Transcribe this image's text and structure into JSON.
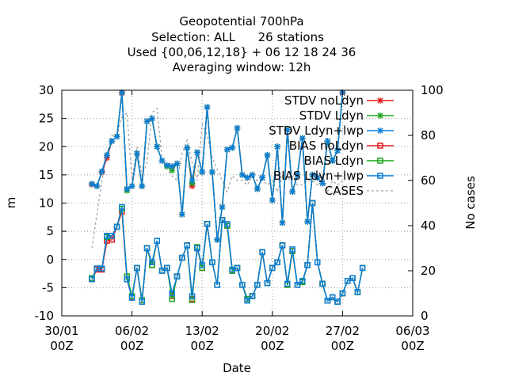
{
  "chart_data": {
    "type": "line",
    "title_lines": [
      "Geopotential 700hPa",
      "Selection: ALL      26 stations",
      "Used {00,06,12,18} + 06 12 18 24 36",
      "Averaging window: 12h"
    ],
    "xlabel": "Date",
    "ylabel": "m",
    "y2label": "No cases",
    "x_ticks": [
      {
        "label1": "30/01",
        "label2": "00Z",
        "day": 0
      },
      {
        "label1": "06/02",
        "label2": "00Z",
        "day": 7
      },
      {
        "label1": "13/02",
        "label2": "00Z",
        "day": 14
      },
      {
        "label1": "20/02",
        "label2": "00Z",
        "day": 21
      },
      {
        "label1": "27/02",
        "label2": "00Z",
        "day": 28
      },
      {
        "label1": "06/03",
        "label2": "00Z",
        "day": 35
      }
    ],
    "xlim": [
      0,
      35
    ],
    "ylim": [
      -10,
      30
    ],
    "y_ticks": [
      "-10",
      "-5",
      "0",
      "5",
      "10",
      "15",
      "20",
      "25",
      "30"
    ],
    "y2lim": [
      0,
      100
    ],
    "y2_ticks": [
      "0",
      "20",
      "40",
      "60",
      "80",
      "100"
    ],
    "grid": true,
    "legend_position": "top-right",
    "x_day": [
      3.0,
      3.5,
      4.0,
      4.5,
      5.0,
      5.5,
      6.0,
      6.5,
      7.0,
      7.5,
      8.0,
      8.5,
      9.0,
      9.5,
      10.0,
      10.5,
      11.0,
      11.5,
      12.0,
      12.5,
      13.0,
      13.5,
      14.0,
      14.5,
      15.0,
      15.5,
      16.0,
      16.5,
      17.0,
      17.5,
      18.0,
      18.5,
      19.0,
      19.5,
      20.0,
      20.5,
      21.0,
      21.5,
      22.0,
      22.5,
      23.0,
      23.5,
      24.0,
      24.5,
      25.0,
      25.5,
      26.0,
      26.5,
      27.0,
      27.5,
      28.0,
      28.5,
      29.0,
      29.5,
      30.0
    ],
    "series": [
      {
        "name": "STDV noLdyn",
        "color": "#e41a1c",
        "marker": "x",
        "values": [
          13.3,
          13.0,
          15.5,
          18.0,
          21.0,
          21.8,
          29.5,
          12.5,
          13.0,
          18.8,
          13.0,
          24.5,
          25.0,
          20.0,
          17.5,
          16.7,
          16.5,
          17.0,
          8.0,
          19.8,
          13.0,
          19.0,
          15.5,
          27.0,
          15.5,
          3.5,
          9.3,
          19.5,
          19.8,
          23.3,
          15.0,
          14.5,
          15.0,
          12.5,
          14.5,
          18.5,
          10.5,
          20.0,
          6.5,
          23.0,
          12.0,
          15.0,
          21.5,
          6.7,
          15.0,
          14.5,
          13.5,
          21.0,
          17.5,
          19.3,
          29.5,
          null,
          null,
          null,
          null
        ]
      },
      {
        "name": "STDV Ldyn",
        "color": "#1aa51a",
        "marker": "x",
        "values": [
          13.4,
          13.0,
          15.6,
          18.5,
          21.0,
          21.8,
          29.6,
          12.2,
          13.0,
          18.8,
          13.0,
          24.5,
          25.0,
          20.0,
          17.5,
          16.5,
          15.8,
          17.0,
          8.0,
          19.8,
          13.5,
          19.0,
          15.5,
          27.0,
          15.5,
          3.5,
          9.3,
          19.5,
          19.8,
          23.3,
          15.0,
          14.5,
          15.0,
          12.5,
          14.5,
          18.5,
          10.5,
          20.0,
          6.5,
          23.0,
          12.0,
          15.0,
          21.5,
          6.7,
          15.0,
          14.5,
          13.5,
          21.0,
          17.5,
          19.3,
          29.6,
          null,
          null,
          null,
          null
        ]
      },
      {
        "name": "STDV Ldyn+lwp",
        "color": "#0a7fd9",
        "marker": "x",
        "values": [
          13.4,
          13.0,
          15.6,
          18.5,
          21.0,
          21.8,
          29.6,
          12.5,
          13.0,
          18.8,
          13.0,
          24.5,
          25.0,
          20.0,
          17.5,
          16.7,
          16.5,
          17.0,
          8.0,
          19.8,
          14.0,
          19.0,
          15.5,
          27.0,
          15.5,
          3.5,
          9.3,
          19.5,
          19.8,
          23.3,
          15.0,
          14.5,
          15.0,
          12.5,
          14.5,
          18.5,
          10.5,
          20.0,
          6.5,
          23.0,
          12.0,
          15.0,
          21.5,
          6.7,
          15.0,
          14.5,
          13.5,
          21.0,
          17.5,
          19.3,
          29.6,
          null,
          null,
          null,
          null
        ]
      },
      {
        "name": "BIAS noLdyn",
        "color": "#e41a1c",
        "marker": "square",
        "values": [
          -3.5,
          -1.8,
          -1.8,
          3.3,
          3.5,
          5.8,
          8.5,
          -3.5,
          -6.7,
          -1.5,
          -7.5,
          2.0,
          -1.0,
          3.3,
          -2.0,
          -1.5,
          -6.5,
          -3.0,
          0.3,
          2.5,
          -7.0,
          2.0,
          -1.5,
          6.3,
          -0.5,
          -4.5,
          7.0,
          6.0,
          -2.0,
          -1.5,
          -4.5,
          -7.0,
          -6.5,
          -4.5,
          1.3,
          -4.2,
          -1.5,
          -0.5,
          2.5,
          -4.5,
          1.5,
          -4.5,
          -4.0,
          -1.0,
          10.0,
          -0.5,
          -4.3,
          -7.3,
          -6.7,
          -7.5,
          -6.0,
          -3.8,
          -3.3,
          -5.8,
          -1.5
        ]
      },
      {
        "name": "BIAS Ldyn",
        "color": "#1aa51a",
        "marker": "square",
        "values": [
          -3.3,
          -1.6,
          -1.6,
          4.0,
          4.2,
          5.8,
          9.0,
          -3.0,
          -6.5,
          -1.5,
          -7.2,
          2.0,
          -1.0,
          3.3,
          -2.0,
          -1.5,
          -7.0,
          -3.0,
          0.3,
          2.5,
          -7.2,
          2.2,
          -1.5,
          6.3,
          -0.5,
          -4.5,
          7.0,
          6.0,
          -2.0,
          -1.5,
          -4.5,
          -7.0,
          -6.5,
          -4.5,
          1.3,
          -4.2,
          -1.5,
          -0.5,
          2.5,
          -4.5,
          1.5,
          -4.5,
          -4.0,
          -1.0,
          10.0,
          -0.5,
          -4.3,
          -7.3,
          -6.7,
          -7.5,
          -6.0,
          -3.8,
          -3.3,
          -5.8,
          -1.5
        ]
      },
      {
        "name": "BIAS Ldyn+lwp",
        "color": "#0a7fd9",
        "marker": "square",
        "values": [
          -3.5,
          -1.6,
          -1.6,
          4.2,
          4.2,
          5.8,
          9.3,
          -3.5,
          -6.8,
          -1.5,
          -7.5,
          2.0,
          -0.5,
          3.3,
          -2.0,
          -1.5,
          -6.0,
          -3.0,
          0.3,
          2.5,
          -6.5,
          2.0,
          -1.0,
          6.3,
          -0.5,
          -4.5,
          7.0,
          6.3,
          -1.8,
          -1.5,
          -4.5,
          -7.3,
          -6.5,
          -4.5,
          1.3,
          -4.2,
          -1.5,
          -0.5,
          2.5,
          -4.3,
          1.8,
          -4.5,
          -3.8,
          -1.0,
          10.0,
          -0.5,
          -4.3,
          -7.3,
          -6.7,
          -7.5,
          -6.0,
          -3.8,
          -3.3,
          -5.8,
          -1.5
        ]
      },
      {
        "name": "CASES",
        "color": "#a0a0a0",
        "marker": "none",
        "axis": "y2",
        "values": [
          30,
          45,
          60,
          72,
          80,
          80,
          88,
          90,
          60,
          75,
          62,
          68,
          90,
          92,
          70,
          65,
          62,
          60,
          72,
          78,
          68,
          60,
          85,
          80,
          70,
          65,
          60,
          55,
          62,
          60,
          60,
          58,
          62,
          60,
          60,
          58,
          60,
          55,
          62,
          60,
          62,
          58,
          58,
          60,
          60,
          58,
          62,
          55,
          60,
          58,
          60,
          null,
          null,
          null,
          null
        ]
      }
    ]
  }
}
